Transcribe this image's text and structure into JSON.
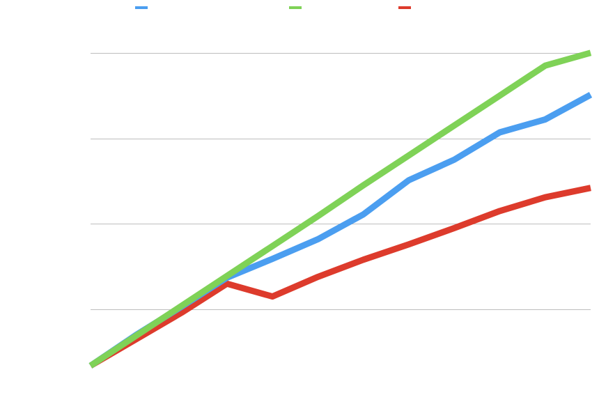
{
  "colors": {
    "background": "#ffffff",
    "grid": "#bdbdbd"
  },
  "chart_data": {
    "type": "line",
    "title": "",
    "xlabel": "",
    "ylabel": "",
    "x": [
      0,
      1,
      2,
      3,
      4,
      5,
      6,
      7,
      8,
      9,
      10,
      11
    ],
    "xlim": [
      0,
      11
    ],
    "ylim": [
      0,
      4
    ],
    "grid": true,
    "gridlines_y": [
      0.66,
      1.66,
      2.66,
      3.66
    ],
    "legend_placement": "top",
    "series": [
      {
        "name": "",
        "color": "#4b9ef0",
        "values": [
          0.0,
          0.36,
          0.69,
          1.03,
          1.25,
          1.48,
          1.77,
          2.17,
          2.41,
          2.73,
          2.88,
          3.17
        ]
      },
      {
        "name": "",
        "color": "#7fd257",
        "values": [
          0.0,
          0.35,
          0.7,
          1.05,
          1.4,
          1.75,
          2.11,
          2.46,
          2.81,
          3.16,
          3.51,
          3.66
        ]
      },
      {
        "name": "",
        "color": "#dd3b2c",
        "values": [
          0.0,
          0.31,
          0.62,
          0.96,
          0.81,
          1.04,
          1.24,
          1.42,
          1.61,
          1.81,
          1.97,
          2.08
        ]
      }
    ]
  }
}
